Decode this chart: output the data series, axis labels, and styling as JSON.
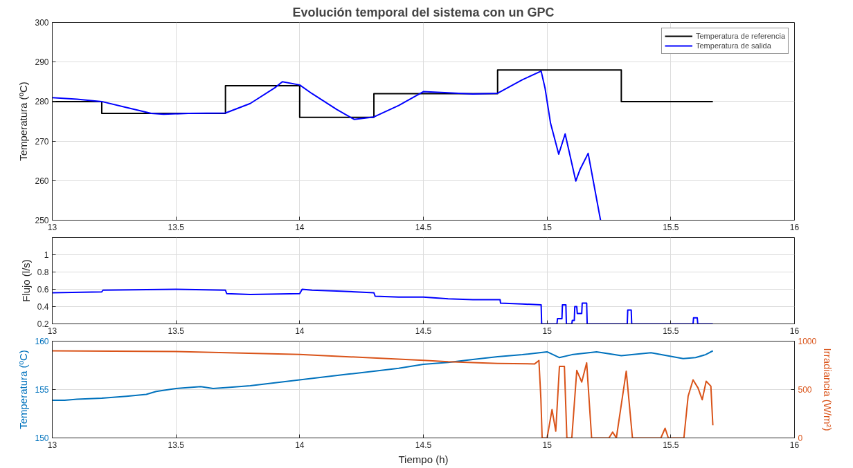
{
  "chart_data": [
    {
      "type": "line",
      "title": "Evolución temporal del sistema con un GPC",
      "ylabel": "Temperatura (ºC)",
      "xlim": [
        13,
        16
      ],
      "xticks": [
        13,
        13.5,
        14,
        14.5,
        15,
        15.5,
        16
      ],
      "ylim": [
        250,
        300
      ],
      "yticks": [
        250,
        260,
        270,
        280,
        290,
        300
      ],
      "grid": true,
      "legend": "top right",
      "series": [
        {
          "name": "Temperatura de referencia",
          "color": "#000000",
          "x": [
            13,
            13.2,
            13.2,
            13.7,
            13.7,
            14,
            14,
            14.3,
            14.3,
            14.8,
            14.8,
            15.3,
            15.3,
            15.67
          ],
          "values": [
            280,
            280,
            277,
            277,
            284,
            284,
            276,
            276,
            282,
            282,
            288,
            288,
            280,
            280
          ]
        },
        {
          "name": "Temperatura de salida",
          "color": "#0000ff",
          "x": [
            13,
            13.1,
            13.2,
            13.3,
            13.4,
            13.45,
            13.55,
            13.7,
            13.8,
            13.9,
            13.93,
            14.0,
            14.05,
            14.15,
            14.22,
            14.3,
            14.4,
            14.5,
            14.6,
            14.7,
            14.8,
            14.9,
            14.976,
            14.992,
            15.014,
            15.047,
            15.073,
            15.116,
            15.133,
            15.166,
            15.216
          ],
          "values": [
            281,
            280.6,
            280,
            278.5,
            277,
            276.8,
            277,
            277.1,
            279.5,
            283.5,
            285,
            284.2,
            282,
            278,
            275.5,
            276.1,
            279,
            282.5,
            282.2,
            281.9,
            282.1,
            285.5,
            287.7,
            283.3,
            274.5,
            266.7,
            271.8,
            259.9,
            262.8,
            266.9,
            250
          ]
        }
      ]
    },
    {
      "type": "line",
      "ylabel": "Flujo (l/s)",
      "xlim": [
        13,
        16
      ],
      "xticks": [
        13,
        13.5,
        14,
        14.5,
        15,
        15.5,
        16
      ],
      "ylim": [
        0.2,
        1.2
      ],
      "yticks": [
        0.2,
        0.4,
        0.6,
        0.8,
        1
      ],
      "grid": true,
      "series": [
        {
          "color": "#0000ff",
          "x": [
            13,
            13.2,
            13.205,
            13.5,
            13.7,
            13.705,
            13.8,
            14.0,
            14.01,
            14.05,
            14.15,
            14.3,
            14.305,
            14.4,
            14.5,
            14.6,
            14.7,
            14.81,
            14.812,
            14.9,
            14.976,
            14.978,
            15.04,
            15.042,
            15.06,
            15.062,
            15.076,
            15.078,
            15.1,
            15.102,
            15.11,
            15.112,
            15.12,
            15.122,
            15.14,
            15.142,
            15.16,
            15.162,
            15.177,
            15.179,
            15.324,
            15.326,
            15.34,
            15.342,
            15.59,
            15.592,
            15.607,
            15.609,
            15.67
          ],
          "values": [
            0.56,
            0.57,
            0.59,
            0.6,
            0.59,
            0.55,
            0.54,
            0.55,
            0.6,
            0.59,
            0.58,
            0.56,
            0.52,
            0.51,
            0.51,
            0.49,
            0.48,
            0.48,
            0.44,
            0.43,
            0.42,
            0.2,
            0.2,
            0.26,
            0.26,
            0.42,
            0.42,
            0.2,
            0.2,
            0.24,
            0.24,
            0.4,
            0.4,
            0.32,
            0.32,
            0.44,
            0.44,
            0.2,
            0.2,
            0.2,
            0.2,
            0.36,
            0.36,
            0.2,
            0.2,
            0.27,
            0.27,
            0.2,
            0.2
          ]
        }
      ]
    },
    {
      "type": "line",
      "xlabel": "Tiempo (h)",
      "ylabel": "Temperatura (ºC)",
      "y2label": "Irradiancia (W/m²)",
      "xlim": [
        13,
        16
      ],
      "xticks": [
        13,
        13.5,
        14,
        14.5,
        15,
        15.5,
        16
      ],
      "ylim": [
        150,
        160
      ],
      "yticks": [
        150,
        155,
        160
      ],
      "y2lim": [
        0,
        1000
      ],
      "y2ticks": [
        0,
        500,
        1000
      ],
      "grid": true,
      "series": [
        {
          "color": "#0072bd",
          "x": [
            13,
            13.05,
            13.1,
            13.2,
            13.3,
            13.38,
            13.42,
            13.5,
            13.6,
            13.65,
            13.7,
            13.8,
            13.9,
            14.0,
            14.1,
            14.2,
            14.3,
            14.4,
            14.5,
            14.6,
            14.7,
            14.8,
            14.9,
            15.0,
            15.05,
            15.1,
            15.2,
            15.3,
            15.42,
            15.55,
            15.6,
            15.64,
            15.67
          ],
          "values": [
            153.9,
            153.9,
            154.0,
            154.1,
            154.3,
            154.5,
            154.8,
            155.1,
            155.3,
            155.1,
            155.2,
            155.4,
            155.7,
            156.0,
            156.3,
            156.6,
            156.9,
            157.2,
            157.6,
            157.8,
            158.1,
            158.4,
            158.6,
            158.9,
            158.3,
            158.6,
            158.9,
            158.5,
            158.8,
            158.2,
            158.3,
            158.6,
            159.0
          ]
        },
        {
          "color": "#d95319",
          "axis": "y2",
          "x": [
            13,
            13.5,
            14.0,
            14.5,
            14.6,
            14.8,
            14.95,
            14.967,
            14.975,
            14.98,
            15.0,
            15.02,
            15.035,
            15.05,
            15.07,
            15.08,
            15.1,
            15.12,
            15.14,
            15.16,
            15.18,
            15.25,
            15.265,
            15.28,
            15.32,
            15.345,
            15.46,
            15.477,
            15.49,
            15.553,
            15.57,
            15.59,
            15.61,
            15.627,
            15.643,
            15.662,
            15.67
          ],
          "values": [
            900,
            893,
            862,
            802,
            787,
            770,
            765,
            800,
            400,
            0,
            0,
            293,
            70,
            740,
            740,
            0,
            0,
            698,
            577,
            776,
            0,
            0,
            60,
            0,
            690,
            0,
            0,
            100,
            0,
            0,
            430,
            600,
            517,
            395,
            586,
            535,
            130
          ]
        }
      ]
    }
  ]
}
